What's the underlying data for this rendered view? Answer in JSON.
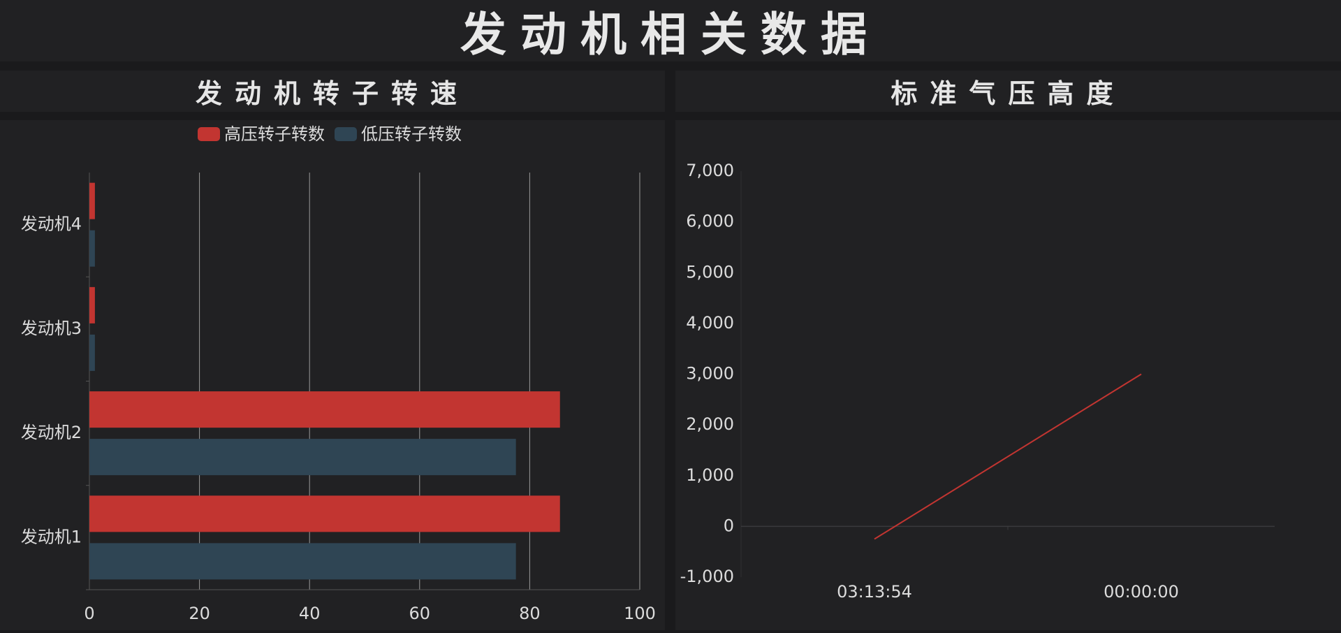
{
  "header": {
    "title": "发动机相关数据"
  },
  "left_panel": {
    "title": "发动机转子转速"
  },
  "right_panel": {
    "title": "标准气压高度"
  },
  "colors": {
    "high_pressure": "#c23531",
    "low_pressure": "#2f4554",
    "line": "#c23531",
    "axis_text": "#dcdcdc",
    "grid": "#9a9a9a"
  },
  "chart_data": [
    {
      "type": "bar",
      "orientation": "horizontal",
      "categories": [
        "发动机1",
        "发动机2",
        "发动机3",
        "发动机4"
      ],
      "series": [
        {
          "name": "高压转子转数",
          "values": [
            85.5,
            85.5,
            1,
            1
          ]
        },
        {
          "name": "低压转子转数",
          "values": [
            77.5,
            77.5,
            1,
            1
          ]
        }
      ],
      "xlim": [
        0,
        100
      ],
      "xticks": [
        0,
        20,
        40,
        60,
        80,
        100
      ],
      "legend": "top-center",
      "grid": true
    },
    {
      "type": "line",
      "x": [
        "03:13:54",
        "00:00:00"
      ],
      "y": [
        -250,
        3000
      ],
      "ylim": [
        -1000,
        7000
      ],
      "yticks": [
        -1000,
        0,
        1000,
        2000,
        3000,
        4000,
        5000,
        6000,
        7000
      ],
      "ytick_labels": [
        "-1,000",
        "0",
        "1,000",
        "2,000",
        "3,000",
        "4,000",
        "5,000",
        "6,000",
        "7,000"
      ],
      "legend": "none",
      "grid": false
    }
  ]
}
